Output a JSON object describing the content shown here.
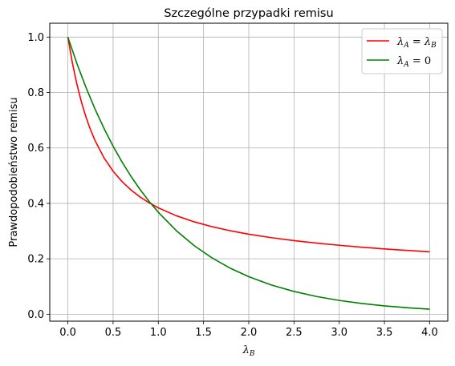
{
  "chart_data": {
    "type": "line",
    "title": "Szczególne przypadki remisu",
    "xlabel": "λ_B",
    "xlabel_main": "λ",
    "xlabel_sub": "B",
    "ylabel": "Prawdopodobieństwo remisu",
    "xlim": [
      -0.2,
      4.2
    ],
    "ylim": [
      -0.025,
      1.05
    ],
    "xticks": [
      0.0,
      0.5,
      1.0,
      1.5,
      2.0,
      2.5,
      3.0,
      3.5,
      4.0
    ],
    "xtick_labels": [
      "0.0",
      "0.5",
      "1.0",
      "1.5",
      "2.0",
      "2.5",
      "3.0",
      "3.5",
      "4.0"
    ],
    "yticks": [
      0.0,
      0.2,
      0.4,
      0.6,
      0.8,
      1.0
    ],
    "ytick_labels": [
      "0.0",
      "0.2",
      "0.4",
      "0.6",
      "0.8",
      "1.0"
    ],
    "grid": true,
    "legend_position": "top-right",
    "series": [
      {
        "name": "λ_A = λ_B",
        "legend": {
          "a": "λ",
          "a_sub": "A",
          "eq": " = ",
          "b": "λ",
          "b_sub": "B"
        },
        "color": "#ff0000",
        "x": [
          0.0,
          0.05,
          0.1,
          0.15,
          0.2,
          0.25,
          0.3,
          0.4,
          0.5,
          0.6,
          0.7,
          0.8,
          0.9,
          1.0,
          1.2,
          1.4,
          1.6,
          1.8,
          2.0,
          2.25,
          2.5,
          2.75,
          3.0,
          3.25,
          3.5,
          3.75,
          4.0
        ],
        "y": [
          1.0,
          0.9071,
          0.8301,
          0.7658,
          0.7118,
          0.6661,
          0.6271,
          0.5642,
          0.5161,
          0.4783,
          0.4478,
          0.4227,
          0.4017,
          0.3839,
          0.3552,
          0.3331,
          0.3154,
          0.3009,
          0.2888,
          0.2763,
          0.2657,
          0.2566,
          0.2488,
          0.2418,
          0.2357,
          0.2302,
          0.2252
        ]
      },
      {
        "name": "λ_A = 0",
        "legend": {
          "a": "λ",
          "a_sub": "A",
          "eq": " = 0",
          "b": "",
          "b_sub": ""
        },
        "color": "#008000",
        "x": [
          0.0,
          0.1,
          0.2,
          0.3,
          0.4,
          0.5,
          0.6,
          0.7,
          0.8,
          0.9,
          1.0,
          1.2,
          1.4,
          1.6,
          1.8,
          2.0,
          2.25,
          2.5,
          2.75,
          3.0,
          3.25,
          3.5,
          3.75,
          4.0
        ],
        "y": [
          1.0,
          0.9048,
          0.8187,
          0.7408,
          0.6703,
          0.6065,
          0.5488,
          0.4966,
          0.4493,
          0.4066,
          0.3679,
          0.3012,
          0.2466,
          0.2019,
          0.1653,
          0.1353,
          0.1054,
          0.0821,
          0.0639,
          0.0498,
          0.0388,
          0.0302,
          0.0235,
          0.0183
        ]
      }
    ]
  }
}
